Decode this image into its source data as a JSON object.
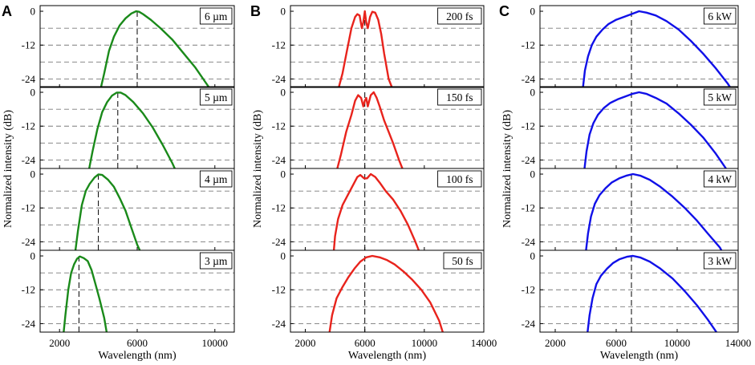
{
  "chart_data": [
    {
      "type": "line",
      "panel_label": "A",
      "xlabel": "Wavelength (nm)",
      "ylabel": "Normalized intensity (dB)",
      "xlim": [
        1000,
        11000
      ],
      "ylim": [
        -27,
        2
      ],
      "xticks": [
        2000,
        6000,
        10000
      ],
      "xtick_labels": [
        "2000",
        "6000",
        "10000"
      ],
      "yticks": [
        0,
        -12,
        -24
      ],
      "ytick_labels": [
        "0",
        "-12",
        "-24"
      ],
      "dashed_gridlines_y": [
        -6,
        -12,
        -18,
        -24
      ],
      "line_color": "#1a8a1a",
      "series": [
        {
          "name": "6 µm",
          "label": "6 µm",
          "marker_x": 6000,
          "x": [
            4100,
            4300,
            4550,
            4800,
            5100,
            5400,
            5700,
            5950,
            6100,
            6300,
            6700,
            7200,
            7800,
            8400,
            9000,
            9500,
            9800
          ],
          "y": [
            -28,
            -22,
            -14,
            -9,
            -5,
            -2.5,
            -0.8,
            0,
            -0.2,
            -1,
            -3,
            -6,
            -10,
            -15,
            -20,
            -25,
            -28
          ]
        },
        {
          "name": "5 µm",
          "label": "5 µm",
          "marker_x": 5000,
          "x": [
            3500,
            3700,
            3950,
            4200,
            4450,
            4700,
            4950,
            5150,
            5400,
            5800,
            6300,
            6800,
            7300,
            7800,
            8000
          ],
          "y": [
            -28,
            -21,
            -13,
            -7,
            -3.5,
            -1.2,
            -0.1,
            -0.1,
            -1,
            -3.5,
            -7.5,
            -12.5,
            -18.5,
            -25,
            -28
          ]
        },
        {
          "name": "4 µm",
          "label": "4 µm",
          "marker_x": 4000,
          "x": [
            2800,
            2950,
            3150,
            3350,
            3550,
            3800,
            4000,
            4200,
            4500,
            4800,
            5100,
            5400,
            5700,
            6000,
            6200
          ],
          "y": [
            -28,
            -20,
            -11,
            -6,
            -3.5,
            -1.2,
            -0.1,
            -0.3,
            -2,
            -4.5,
            -8.5,
            -13,
            -19,
            -25,
            -28
          ]
        },
        {
          "name": "3 µm",
          "label": "3 µm",
          "marker_x": 3000,
          "x": [
            2200,
            2300,
            2450,
            2600,
            2750,
            2900,
            3050,
            3250,
            3450,
            3650,
            3850,
            4050,
            4300,
            4450
          ],
          "y": [
            -28,
            -21,
            -12,
            -6,
            -3,
            -1,
            -0.2,
            -0.8,
            -1.8,
            -5,
            -10,
            -15,
            -22,
            -28
          ]
        }
      ]
    },
    {
      "type": "line",
      "panel_label": "B",
      "xlabel": "Wavelength (nm)",
      "ylabel": "Normalized intensity (dB)",
      "xlim": [
        1000,
        14000
      ],
      "ylim": [
        -27,
        2
      ],
      "xticks": [
        2000,
        6000,
        10000,
        14000
      ],
      "xtick_labels": [
        "2000",
        "6000",
        "10000",
        "14000"
      ],
      "yticks": [
        0,
        -12,
        -24
      ],
      "ytick_labels": [
        "0",
        "-12",
        "-24"
      ],
      "dashed_gridlines_y": [
        -6,
        -12,
        -18,
        -24
      ],
      "line_color": "#e8231c",
      "series": [
        {
          "name": "200 fs",
          "label": "200 fs",
          "marker_x": 6000,
          "x": [
            4200,
            4500,
            4800,
            5100,
            5350,
            5500,
            5650,
            5800,
            5900,
            6000,
            6100,
            6200,
            6350,
            6500,
            6700,
            6900,
            7100,
            7300,
            7600,
            7900
          ],
          "y": [
            -28,
            -22,
            -14,
            -6,
            -2,
            -1,
            -1.5,
            -6,
            -4,
            0,
            -4,
            -6,
            -2,
            -0.2,
            -0.5,
            -3,
            -8,
            -15,
            -24,
            -28
          ]
        },
        {
          "name": "150 fs",
          "label": "150 fs",
          "marker_x": 6000,
          "x": [
            4100,
            4400,
            4750,
            5100,
            5350,
            5550,
            5750,
            5900,
            6000,
            6100,
            6200,
            6400,
            6600,
            6800,
            7000,
            7300,
            7600,
            7900,
            8300,
            8600
          ],
          "y": [
            -28,
            -22,
            -14,
            -8,
            -3,
            -1,
            -2,
            -5,
            -3,
            -2,
            -5,
            -1,
            0,
            -2,
            -5,
            -10,
            -14,
            -18,
            -24,
            -28
          ]
        },
        {
          "name": "100 fs",
          "label": "100 fs",
          "marker_x": 6000,
          "x": [
            3900,
            4000,
            4200,
            4500,
            4800,
            5100,
            5300,
            5500,
            5700,
            5950,
            6150,
            6400,
            6700,
            7000,
            7400,
            7900,
            8400,
            8900,
            9400,
            9700
          ],
          "y": [
            -28,
            -22,
            -16,
            -11,
            -8,
            -5,
            -3,
            -1,
            -0.3,
            -1.5,
            -1.5,
            0,
            -1,
            -3,
            -6,
            -9,
            -13,
            -18,
            -24,
            -28
          ]
        },
        {
          "name": "50 fs",
          "label": "50 fs",
          "marker_x": 6000,
          "x": [
            3600,
            3800,
            4100,
            4500,
            4900,
            5300,
            5700,
            6100,
            6500,
            7000,
            7500,
            8000,
            8600,
            9200,
            9800,
            10400,
            11000,
            11300
          ],
          "y": [
            -28,
            -21,
            -15,
            -11,
            -7.5,
            -4.5,
            -2,
            -0.5,
            0,
            -0.5,
            -1.5,
            -3,
            -5.5,
            -8.5,
            -12,
            -16.5,
            -23,
            -28
          ]
        }
      ]
    },
    {
      "type": "line",
      "panel_label": "C",
      "xlabel": "Wavelength (nm)",
      "ylabel": "Normalized intensity (dB)",
      "xlim": [
        1000,
        14000
      ],
      "ylim": [
        -27,
        2
      ],
      "xticks": [
        2000,
        6000,
        10000,
        14000
      ],
      "xtick_labels": [
        "2000",
        "6000",
        "10000",
        "14000"
      ],
      "yticks": [
        0,
        -12,
        -24
      ],
      "ytick_labels": [
        "0",
        "-12",
        "-24"
      ],
      "dashed_gridlines_y": [
        -6,
        -12,
        -18,
        -24
      ],
      "line_color": "#1010e8",
      "series": [
        {
          "name": "6 kW",
          "label": "6 kW",
          "marker_x": 7000,
          "x": [
            3800,
            3950,
            4150,
            4400,
            4700,
            5100,
            5500,
            6000,
            6500,
            7000,
            7500,
            8000,
            8600,
            9300,
            10100,
            10900,
            11700,
            12500,
            13300,
            13600
          ],
          "y": [
            -28,
            -21,
            -16,
            -12,
            -9,
            -6.5,
            -4.5,
            -3,
            -2,
            -1,
            0,
            -0.5,
            -1.5,
            -3.5,
            -6.5,
            -10.5,
            -15,
            -20,
            -25.5,
            -28
          ]
        },
        {
          "name": "5 kW",
          "label": "5 kW",
          "marker_x": 7000,
          "x": [
            3900,
            4050,
            4250,
            4500,
            4800,
            5200,
            5600,
            6100,
            6600,
            7100,
            7500,
            8000,
            8600,
            9300,
            10100,
            10900,
            11700,
            12500,
            13200
          ],
          "y": [
            -28,
            -21,
            -15,
            -11,
            -8,
            -5.5,
            -3.8,
            -2.5,
            -1.5,
            -0.5,
            0,
            -0.6,
            -2,
            -4,
            -7.5,
            -11.5,
            -16,
            -21.5,
            -27
          ]
        },
        {
          "name": "4 kW",
          "label": "4 kW",
          "marker_x": 7000,
          "x": [
            4000,
            4150,
            4350,
            4600,
            4900,
            5300,
            5700,
            6200,
            6700,
            7100,
            7600,
            8200,
            8900,
            9700,
            10500,
            11300,
            12000,
            12800,
            13000
          ],
          "y": [
            -28,
            -21,
            -15,
            -10.5,
            -7.5,
            -5,
            -3,
            -1.5,
            -0.5,
            0,
            -0.6,
            -2,
            -4.5,
            -8,
            -12,
            -16.5,
            -21,
            -26,
            -28
          ]
        },
        {
          "name": "3 kW",
          "label": "3 kW",
          "marker_x": 7000,
          "x": [
            4100,
            4250,
            4450,
            4700,
            5000,
            5400,
            5800,
            6200,
            6700,
            7100,
            7600,
            8200,
            8900,
            9700,
            10500,
            11300,
            12000,
            12700
          ],
          "y": [
            -28,
            -21,
            -15,
            -10,
            -7,
            -4.5,
            -2.5,
            -1.2,
            -0.3,
            0,
            -0.6,
            -2,
            -4.5,
            -8,
            -12.5,
            -17.5,
            -22.5,
            -28
          ]
        }
      ]
    }
  ]
}
